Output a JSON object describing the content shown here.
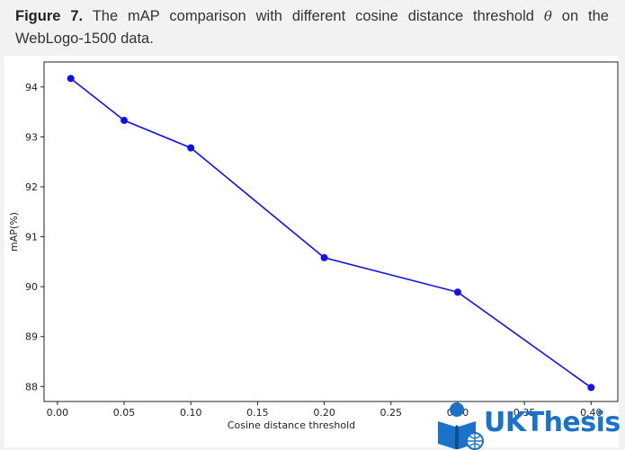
{
  "caption": {
    "label": "Figure 7.",
    "text_before": " The mAP comparison with different cosine distance threshold ",
    "symbol": "θ",
    "text_after": " on the WebLogo-1500 data."
  },
  "chart_data": {
    "type": "line",
    "title": "",
    "xlabel": "Cosine distance threshold",
    "ylabel": "mAP(%)",
    "xlim": [
      -0.01,
      0.42
    ],
    "ylim": [
      87.7,
      94.5
    ],
    "xticks": [
      "0.00",
      "0.05",
      "0.10",
      "0.15",
      "0.20",
      "0.25",
      "0.30",
      "0.35",
      "0.40"
    ],
    "yticks": [
      "88",
      "89",
      "90",
      "91",
      "92",
      "93",
      "94"
    ],
    "grid": false,
    "series": [
      {
        "color": "#1010ee",
        "marker": "circle",
        "x": [
          0.01,
          0.05,
          0.1,
          0.2,
          0.3,
          0.4
        ],
        "y": [
          94.17,
          93.33,
          92.78,
          90.58,
          89.89,
          87.98
        ]
      }
    ]
  },
  "watermark": {
    "text": "UKThesis",
    "color": "#1a73c9",
    "icon": "reading-person-globe-icon"
  }
}
